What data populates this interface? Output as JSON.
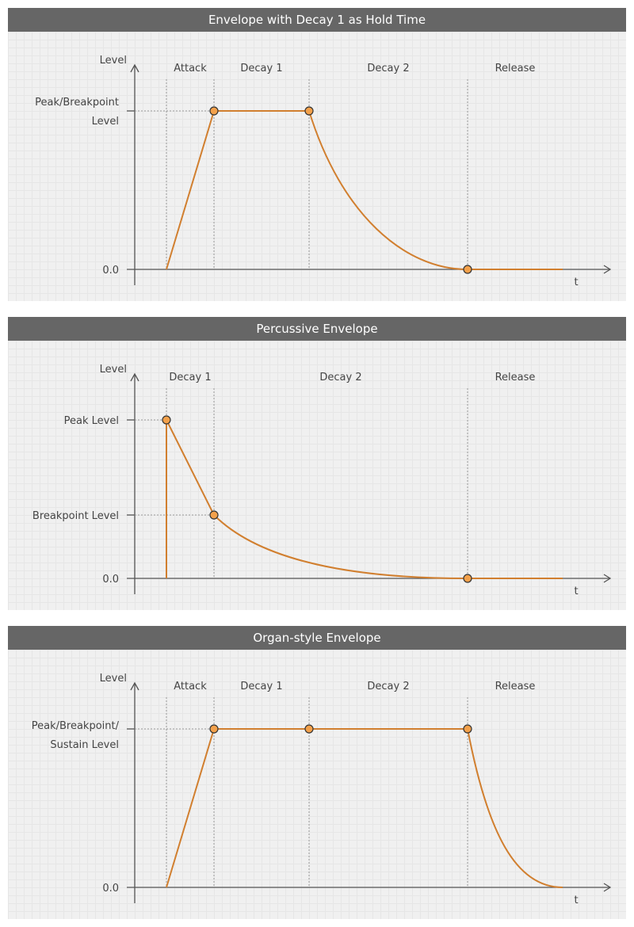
{
  "panels": [
    {
      "title": "Envelope with Decay 1 as Hold Time",
      "y_axis_label": "Level",
      "x_axis_label": "t",
      "y_levels": [
        {
          "lines": [
            "Peak/Breakpoint",
            "Level"
          ]
        },
        {
          "lines": [
            "0.0"
          ]
        }
      ],
      "stages": [
        "Attack",
        "Decay 1",
        "Decay 2",
        "Release"
      ],
      "node_names": [
        "peak",
        "breakpoint",
        "release-start"
      ]
    },
    {
      "title": "Percussive Envelope",
      "y_axis_label": "Level",
      "x_axis_label": "t",
      "y_levels": [
        {
          "lines": [
            "Peak Level"
          ]
        },
        {
          "lines": [
            "Breakpoint Level"
          ]
        },
        {
          "lines": [
            "0.0"
          ]
        }
      ],
      "stages": [
        "Decay 1",
        "Decay 2",
        "Release"
      ],
      "node_names": [
        "peak",
        "breakpoint",
        "release-start"
      ]
    },
    {
      "title": "Organ-style Envelope",
      "y_axis_label": "Level",
      "x_axis_label": "t",
      "y_levels": [
        {
          "lines": [
            "Peak/Breakpoint/",
            "Sustain Level"
          ]
        },
        {
          "lines": [
            "0.0"
          ]
        }
      ],
      "stages": [
        "Attack",
        "Decay 1",
        "Decay 2",
        "Release"
      ],
      "node_names": [
        "peak",
        "breakpoint",
        "release-start"
      ]
    }
  ],
  "colors": {
    "header_bg": "#666666",
    "panel_bg": "#f0f0f0",
    "curve": "#d17f2f",
    "node_fill": "#f3a14b"
  }
}
